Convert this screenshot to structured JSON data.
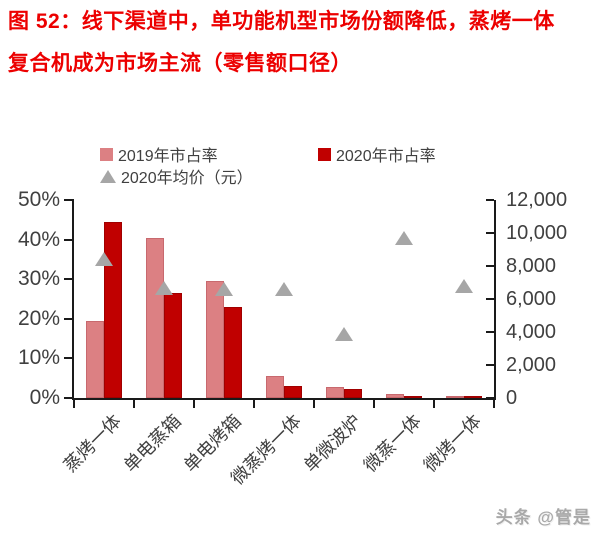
{
  "title": {
    "line1": "图 52：线下渠道中，单功能机型市场份额降低，蒸烤一体",
    "line2": "复合机成为市场主流（零售额口径）",
    "color": "#EC0000"
  },
  "watermark": "头条 @管是",
  "colors": {
    "title_red": "#EC0000",
    "bar_2019_pink": "#DC8083",
    "bar_2019_border": "#C8696E",
    "bar_2020_red": "#C00000",
    "bar_2020_border": "#A00000",
    "triangle_gray": "#A6A6A6",
    "axis_text": "#404040",
    "axis_line": "#1A1A1A"
  },
  "chart_data": {
    "type": "bar",
    "subtype": "combo: grouped columns (left %) + triangle scatter (right CNY)",
    "categories": [
      "蒸烤一体",
      "单电蒸箱",
      "单电烤箱",
      "微蒸烤一体",
      "单微波炉",
      "微蒸一体",
      "微烤一体"
    ],
    "series": [
      {
        "name": "2019年市占率",
        "render": "column",
        "axis": "left",
        "unit": "%",
        "color": "#DC8083",
        "values": [
          19.5,
          40.5,
          29.5,
          5.5,
          2.8,
          1.0,
          0.4
        ]
      },
      {
        "name": "2020年市占率",
        "render": "column",
        "axis": "left",
        "unit": "%",
        "color": "#C00000",
        "values": [
          44.5,
          26.5,
          23.0,
          3.0,
          2.2,
          0.6,
          0.3
        ]
      },
      {
        "name": "2020年均价（元）",
        "render": "triangle-scatter",
        "axis": "right",
        "unit": "元",
        "color": "#A6A6A6",
        "values": [
          8400,
          6700,
          6600,
          6600,
          3900,
          9700,
          6800
        ]
      }
    ],
    "left_axis": {
      "min": 0,
      "max": 50,
      "ticks": [
        "0%",
        "10%",
        "20%",
        "30%",
        "40%",
        "50%"
      ]
    },
    "right_axis": {
      "min": 0,
      "max": 12000,
      "ticks": [
        "0",
        "2,000",
        "4,000",
        "6,000",
        "8,000",
        "10,000",
        "12,000"
      ]
    },
    "grid": false,
    "legend_position": "top"
  }
}
